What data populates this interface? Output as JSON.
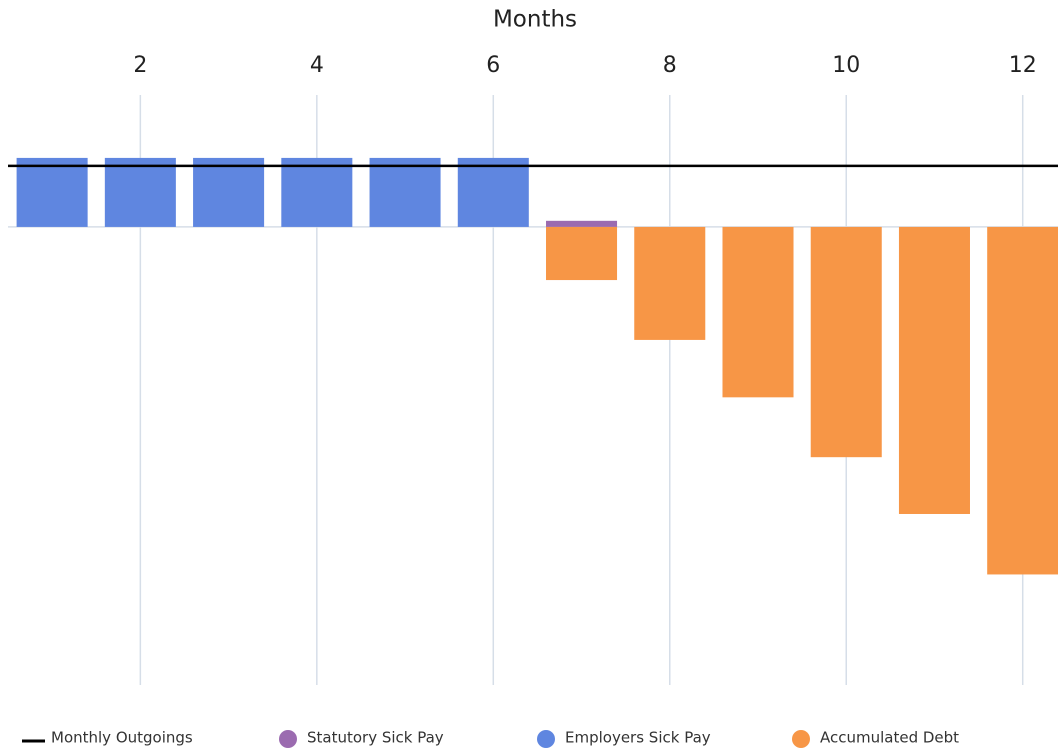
{
  "chart_data": {
    "type": "bar",
    "title": "Months",
    "x": [
      1,
      2,
      3,
      4,
      5,
      6,
      7,
      8,
      9,
      10,
      11,
      12
    ],
    "xlim": [
      0.5,
      12.4
    ],
    "xticks": [
      2,
      4,
      6,
      8,
      10,
      12
    ],
    "ylim": [
      -750,
      216
    ],
    "grid": true,
    "legend": "bottom",
    "series": [
      {
        "name": "Monthly Outgoings",
        "color": "#000000",
        "type": "hline",
        "value": 100
      },
      {
        "name": "Statutory Sick Pay",
        "color": "#9b6bb0",
        "values": [
          null,
          null,
          null,
          null,
          null,
          null,
          10,
          null,
          null,
          null,
          null,
          null
        ]
      },
      {
        "name": "Employers Sick Pay",
        "color": "#5f86e0",
        "values": [
          113,
          113,
          113,
          113,
          113,
          113,
          null,
          null,
          null,
          null,
          null,
          null
        ]
      },
      {
        "name": "Accumulated Debt",
        "color": "#f79646",
        "values": [
          null,
          null,
          null,
          null,
          null,
          null,
          -87,
          -185,
          -279,
          -377,
          -470,
          -569
        ]
      }
    ]
  }
}
